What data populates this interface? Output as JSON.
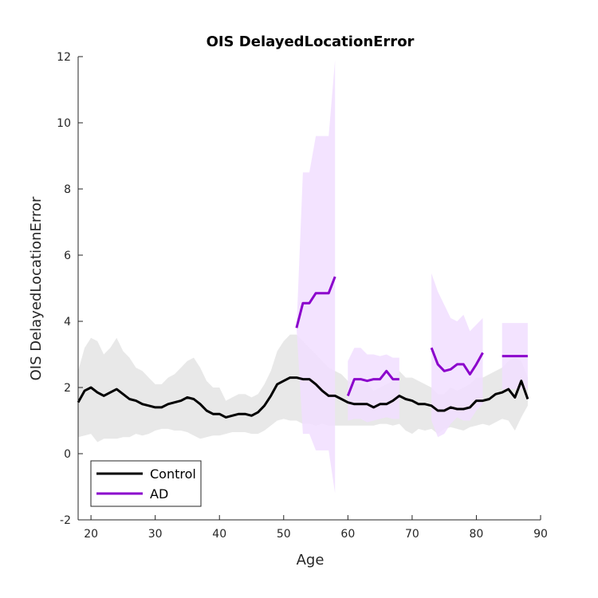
{
  "chart_data": {
    "type": "line",
    "title": "OIS DelayedLocationError",
    "xlabel": "Age",
    "ylabel": "OIS DelayedLocationError",
    "xlim": [
      18,
      90
    ],
    "ylim": [
      -2,
      12
    ],
    "xticks": [
      20,
      30,
      40,
      50,
      60,
      70,
      80,
      90
    ],
    "yticks": [
      -2,
      0,
      2,
      4,
      6,
      8,
      10,
      12
    ],
    "legend_position": "bottom-left",
    "grid": false,
    "series": [
      {
        "name": "Control",
        "color": "#000000",
        "band_color": "#e6e6e6",
        "segments": [
          {
            "x": [
              18,
              19,
              20,
              21,
              22,
              23,
              24,
              25,
              26,
              27,
              28,
              29,
              30,
              31,
              32,
              33,
              34,
              35,
              36,
              37,
              38,
              39,
              40,
              41,
              42,
              43,
              44,
              45,
              46,
              47,
              48,
              49,
              50,
              51,
              52,
              53,
              54,
              55,
              56,
              57,
              58,
              59,
              60,
              61,
              62,
              63,
              64,
              65,
              66,
              67,
              68,
              69,
              70,
              71,
              72,
              73,
              74,
              75,
              76,
              77,
              78,
              79,
              80,
              81,
              82,
              83,
              84,
              85,
              86,
              87,
              88
            ],
            "y": [
              1.55,
              1.9,
              2.0,
              1.85,
              1.75,
              1.85,
              1.95,
              1.8,
              1.65,
              1.6,
              1.5,
              1.45,
              1.4,
              1.4,
              1.5,
              1.55,
              1.6,
              1.7,
              1.65,
              1.5,
              1.3,
              1.2,
              1.2,
              1.1,
              1.15,
              1.2,
              1.2,
              1.15,
              1.25,
              1.45,
              1.75,
              2.1,
              2.2,
              2.3,
              2.3,
              2.25,
              2.25,
              2.1,
              1.9,
              1.75,
              1.75,
              1.65,
              1.55,
              1.5,
              1.5,
              1.5,
              1.4,
              1.5,
              1.5,
              1.6,
              1.75,
              1.65,
              1.6,
              1.5,
              1.5,
              1.45,
              1.3,
              1.3,
              1.4,
              1.35,
              1.35,
              1.4,
              1.6,
              1.6,
              1.65,
              1.8,
              1.85,
              1.95,
              1.7,
              2.2,
              1.65
            ],
            "upper": [
              2.5,
              3.2,
              3.5,
              3.4,
              3.0,
              3.2,
              3.5,
              3.1,
              2.9,
              2.6,
              2.5,
              2.3,
              2.1,
              2.1,
              2.3,
              2.4,
              2.6,
              2.8,
              2.9,
              2.6,
              2.2,
              2.0,
              2.0,
              1.6,
              1.7,
              1.8,
              1.8,
              1.7,
              1.8,
              2.1,
              2.5,
              3.1,
              3.4,
              3.6,
              3.6,
              3.4,
              3.2,
              3.0,
              2.8,
              2.6,
              2.5,
              2.4,
              2.2,
              2.1,
              2.1,
              2.1,
              1.9,
              2.0,
              2.1,
              2.2,
              2.5,
              2.3,
              2.3,
              2.2,
              2.1,
              2.0,
              1.8,
              1.8,
              2.0,
              1.9,
              2.0,
              2.1,
              2.3,
              2.3,
              2.4,
              2.5,
              2.6,
              2.8,
              2.9,
              2.8,
              2.3
            ],
            "lower": [
              0.5,
              0.55,
              0.6,
              0.35,
              0.45,
              0.45,
              0.45,
              0.5,
              0.5,
              0.6,
              0.55,
              0.6,
              0.7,
              0.75,
              0.75,
              0.7,
              0.7,
              0.65,
              0.55,
              0.45,
              0.5,
              0.55,
              0.55,
              0.6,
              0.65,
              0.65,
              0.65,
              0.6,
              0.6,
              0.7,
              0.85,
              1.0,
              1.05,
              1.0,
              1.0,
              0.9,
              0.9,
              0.85,
              0.9,
              0.85,
              0.85,
              0.85,
              0.85,
              0.85,
              0.85,
              0.85,
              0.85,
              0.9,
              0.9,
              0.85,
              0.9,
              0.7,
              0.6,
              0.75,
              0.7,
              0.75,
              0.6,
              0.75,
              0.8,
              0.75,
              0.7,
              0.8,
              0.85,
              0.9,
              0.85,
              0.95,
              1.05,
              1.0,
              0.7,
              1.1,
              1.45
            ]
          }
        ]
      },
      {
        "name": "AD",
        "color": "#8b00cc",
        "band_color": "#f1deff",
        "segments": [
          {
            "x": [
              52,
              53,
              54,
              55,
              56,
              57,
              58
            ],
            "y": [
              3.8,
              4.55,
              4.55,
              4.85,
              4.85,
              4.85,
              5.35
            ],
            "upper": [
              3.8,
              8.5,
              8.5,
              9.6,
              9.6,
              9.6,
              11.9
            ],
            "lower": [
              3.8,
              0.6,
              0.6,
              0.1,
              0.1,
              0.1,
              -1.2
            ]
          },
          {
            "x": [
              60,
              61,
              62,
              63,
              64,
              65,
              66,
              67,
              68
            ],
            "y": [
              1.75,
              2.25,
              2.25,
              2.2,
              2.25,
              2.25,
              2.5,
              2.25,
              2.25
            ],
            "upper": [
              2.8,
              3.2,
              3.2,
              3.0,
              3.0,
              2.95,
              3.0,
              2.9,
              2.9
            ],
            "lower": [
              1.0,
              1.05,
              1.05,
              0.95,
              1.0,
              1.05,
              1.1,
              1.05,
              1.05
            ]
          },
          {
            "x": [
              73,
              74,
              75,
              76,
              77,
              78,
              79,
              80,
              81
            ],
            "y": [
              3.2,
              2.7,
              2.5,
              2.55,
              2.7,
              2.7,
              2.4,
              2.7,
              3.05
            ],
            "upper": [
              5.45,
              4.9,
              4.5,
              4.1,
              4.0,
              4.2,
              3.7,
              3.9,
              4.1
            ],
            "lower": [
              1.0,
              0.5,
              0.6,
              0.9,
              1.1,
              1.0,
              1.0,
              1.3,
              1.5
            ]
          },
          {
            "x": [
              84,
              85,
              86,
              87,
              88
            ],
            "y": [
              2.95,
              2.95,
              2.95,
              2.95,
              2.95
            ],
            "upper": [
              3.95,
              3.95,
              3.95,
              3.95,
              3.95
            ],
            "lower": [
              1.95,
              1.95,
              1.95,
              1.95,
              1.95
            ]
          }
        ]
      }
    ]
  }
}
